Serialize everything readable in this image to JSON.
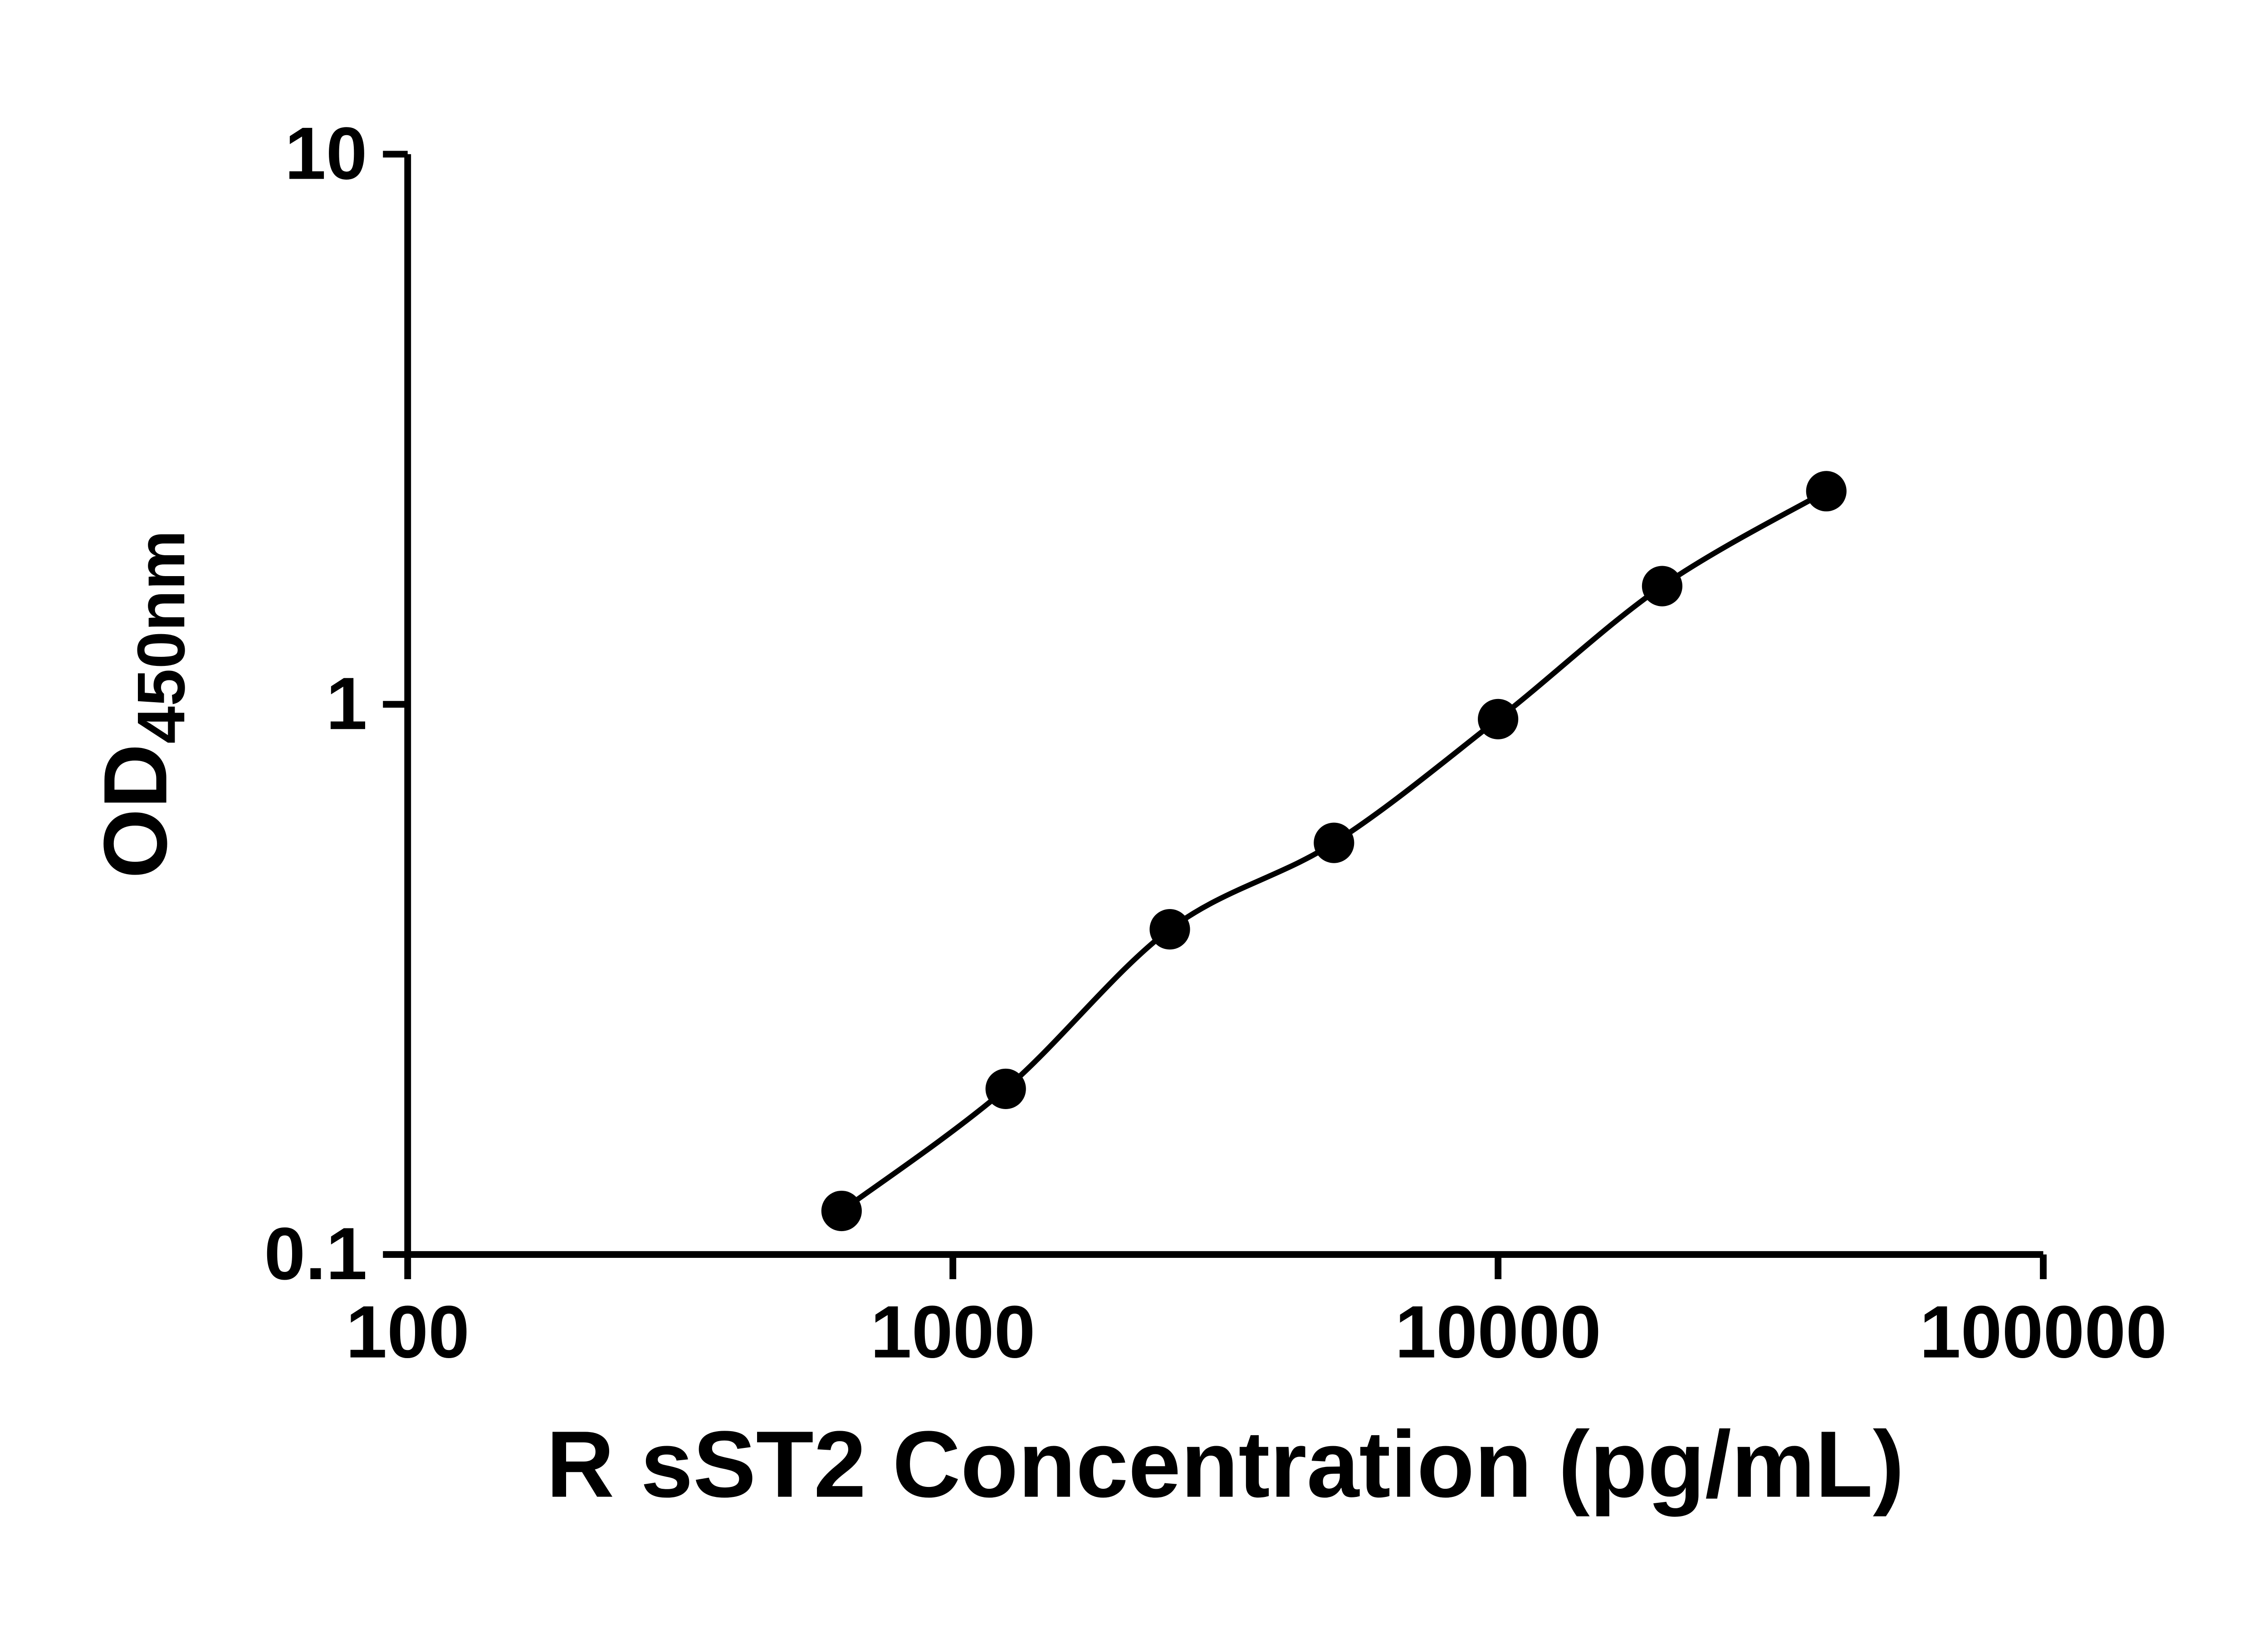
{
  "chart_data": {
    "type": "scatter",
    "line_style": "smooth",
    "x": [
      625,
      1250,
      2500,
      5000,
      10000,
      20000,
      40000
    ],
    "y": [
      0.12,
      0.2,
      0.39,
      0.56,
      0.94,
      1.64,
      2.44
    ],
    "xlabel": "R sST2 Concentration (pg/mL)",
    "ylabel_main": "OD",
    "ylabel_sub": "450nm",
    "x_scale": "log",
    "y_scale": "log",
    "xlim": [
      100,
      100000
    ],
    "ylim": [
      0.1,
      10
    ],
    "x_ticks": {
      "values": [
        100,
        1000,
        10000,
        100000
      ],
      "labels": [
        "100",
        "1000",
        "10000",
        "100000"
      ]
    },
    "y_ticks": {
      "values": [
        0.1,
        1,
        10
      ],
      "labels": [
        "0.1",
        "1",
        "10"
      ]
    },
    "grid": false,
    "legend": "none",
    "line_color": "#000000",
    "marker_color": "#000000",
    "axis_color": "#000000",
    "background_color": "#ffffff"
  }
}
